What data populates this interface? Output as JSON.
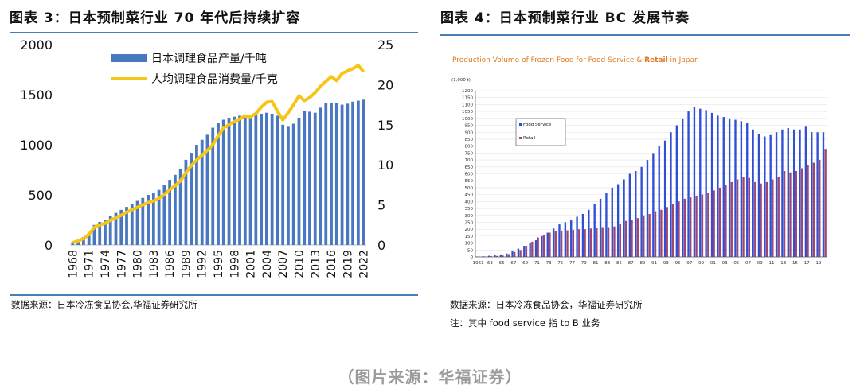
{
  "left_panel": {
    "title": "图表 3：日本预制菜行业 70 年代后持续扩容",
    "source": "数据来源：日本冷冻食品协会,华福证券研究所"
  },
  "right_panel": {
    "title": "图表 4：日本预制菜行业 BC 发展节奏",
    "source": "数据来源：日本冷冻食品协会，华福证券研究所",
    "note": "注：其中 food service 指 to B 业务"
  },
  "caption": "（图片来源：华福证券）",
  "chart_data": [
    {
      "type": "bar",
      "subtype": "bar+line dual axis",
      "title": "",
      "x_start": 1968,
      "x_end": 2022,
      "xtick_labels": [
        "1968",
        "1971",
        "1974",
        "1977",
        "1980",
        "1983",
        "1986",
        "1989",
        "1992",
        "1995",
        "1998",
        "2001",
        "2004",
        "2007",
        "2010",
        "2013",
        "2016",
        "2019",
        "2022"
      ],
      "ylim_left": [
        0,
        2000
      ],
      "yticks_left": [
        0,
        500,
        1000,
        1500,
        2000
      ],
      "ylim_right": [
        0,
        25
      ],
      "yticks_right": [
        0,
        5,
        10,
        15,
        20,
        25
      ],
      "series": [
        {
          "name": "日本调理食品产量/千吨",
          "kind": "bar",
          "axis": "left",
          "color": "#4a78c0",
          "values": [
            30,
            50,
            80,
            120,
            200,
            230,
            250,
            290,
            320,
            350,
            380,
            410,
            440,
            470,
            500,
            520,
            550,
            600,
            650,
            700,
            760,
            850,
            920,
            1000,
            1050,
            1100,
            1170,
            1220,
            1250,
            1270,
            1280,
            1290,
            1300,
            1300,
            1310,
            1310,
            1320,
            1310,
            1290,
            1200,
            1180,
            1210,
            1270,
            1340,
            1330,
            1320,
            1370,
            1420,
            1420,
            1420,
            1400,
            1410,
            1430,
            1440,
            1450
          ]
        },
        {
          "name": "人均调理食品消费量/千克",
          "kind": "line",
          "axis": "right",
          "color": "#f5c518",
          "values": [
            0.3,
            0.5,
            0.8,
            1.3,
            2.2,
            2.5,
            2.7,
            3.1,
            3.4,
            3.7,
            4.1,
            4.4,
            4.7,
            5.0,
            5.3,
            5.5,
            5.8,
            6.3,
            6.9,
            7.4,
            8.0,
            9.0,
            9.9,
            10.6,
            11.2,
            11.8,
            12.5,
            13.6,
            14.6,
            15.0,
            15.4,
            15.7,
            16.1,
            16.0,
            16.4,
            17.2,
            17.8,
            17.9,
            16.7,
            15.6,
            16.5,
            17.5,
            18.6,
            18.0,
            18.4,
            19.0,
            19.8,
            20.4,
            21.0,
            20.5,
            21.4,
            21.7,
            22.0,
            22.4,
            21.6
          ]
        }
      ],
      "legend_position": "top-left"
    },
    {
      "type": "bar",
      "subtype": "grouped bar",
      "title": "Production Volume of Frozen Food for Food Service & Retail in Japan",
      "title_prefix": "Production Volume of Frozen Food for Food Service & ",
      "title_highlight": "Retail",
      "title_suffix": " in Japan",
      "unit_label": "(1,000 t)",
      "ylim": [
        0,
        1200
      ],
      "yticks": [
        0,
        50,
        100,
        150,
        200,
        250,
        300,
        350,
        400,
        450,
        500,
        550,
        600,
        650,
        700,
        750,
        800,
        850,
        900,
        950,
        1000,
        1050,
        1100,
        1150,
        1200
      ],
      "x_start": 1961,
      "x_end": 2020,
      "xtick_labels": [
        "1961",
        "63",
        "65",
        "67",
        "69",
        "71",
        "73",
        "75",
        "77",
        "79",
        "81",
        "83",
        "85",
        "87",
        "89",
        "91",
        "93",
        "95",
        "97",
        "99",
        "01",
        "03",
        "05",
        "07",
        "09",
        "11",
        "13",
        "15",
        "17",
        "19"
      ],
      "series": [
        {
          "name": "Food Service",
          "color": "#2f4fd6",
          "values": [
            3,
            5,
            8,
            12,
            18,
            25,
            40,
            60,
            80,
            100,
            120,
            150,
            175,
            205,
            235,
            250,
            270,
            290,
            310,
            340,
            380,
            420,
            460,
            500,
            525,
            560,
            600,
            620,
            650,
            700,
            750,
            800,
            840,
            900,
            950,
            1000,
            1050,
            1080,
            1070,
            1060,
            1040,
            1020,
            1010,
            1000,
            990,
            980,
            970,
            920,
            890,
            870,
            880,
            900,
            920,
            930,
            920,
            920,
            940,
            900,
            900,
            900
          ]
        },
        {
          "name": "Retail",
          "color": "#a04670",
          "values": [
            2,
            3,
            5,
            7,
            10,
            20,
            35,
            50,
            80,
            110,
            140,
            160,
            175,
            185,
            190,
            192,
            195,
            200,
            200,
            205,
            210,
            215,
            215,
            220,
            240,
            260,
            270,
            280,
            300,
            310,
            330,
            340,
            360,
            380,
            400,
            420,
            430,
            440,
            450,
            460,
            480,
            500,
            520,
            540,
            560,
            580,
            570,
            540,
            530,
            540,
            560,
            580,
            620,
            610,
            620,
            640,
            660,
            680,
            700,
            780
          ]
        }
      ],
      "legend_position": "top-left"
    }
  ]
}
